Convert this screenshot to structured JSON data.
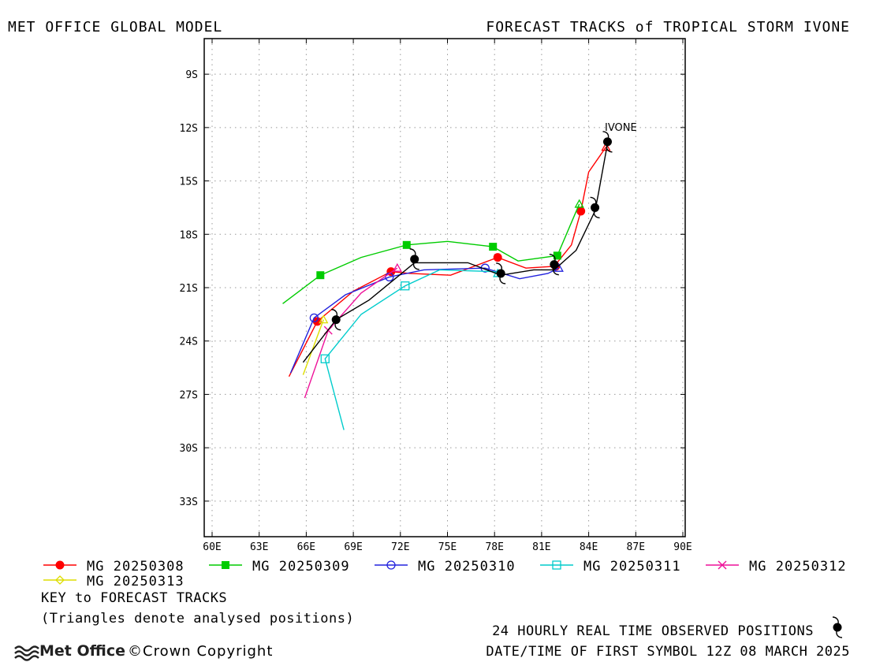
{
  "header": {
    "left_title": "MET OFFICE GLOBAL MODEL",
    "right_title": "FORECAST TRACKS of TROPICAL STORM IVONE"
  },
  "colors": {
    "observed": "#000000",
    "grid": "#999999"
  },
  "chart_data": {
    "type": "line",
    "title": "FORECAST TRACKS of TROPICAL STORM IVONE",
    "xlim": [
      60,
      90
    ],
    "ylim": [
      -35,
      -7
    ],
    "x_ticks": [
      60,
      63,
      66,
      69,
      72,
      75,
      78,
      81,
      84,
      87,
      90
    ],
    "x_tick_labels": [
      "60E",
      "63E",
      "66E",
      "69E",
      "72E",
      "75E",
      "78E",
      "81E",
      "84E",
      "87E",
      "90E"
    ],
    "y_ticks": [
      -9,
      -12,
      -15,
      -18,
      -21,
      -24,
      -27,
      -30,
      -33
    ],
    "y_tick_labels": [
      "9S",
      "12S",
      "15S",
      "18S",
      "21S",
      "24S",
      "27S",
      "30S",
      "33S"
    ],
    "grid": true,
    "storm_label": "IVONE",
    "observed": {
      "points": [
        [
          85.2,
          -12.8
        ],
        [
          84.4,
          -16.5
        ],
        [
          81.8,
          -19.7
        ],
        [
          78.4,
          -20.2
        ],
        [
          72.9,
          -19.4
        ],
        [
          67.9,
          -22.8
        ]
      ],
      "track": [
        [
          65.8,
          -25.2
        ],
        [
          67.9,
          -22.8
        ],
        [
          70.0,
          -21.7
        ],
        [
          71.8,
          -20.4
        ],
        [
          72.9,
          -19.6
        ],
        [
          76.3,
          -19.6
        ],
        [
          78.4,
          -20.3
        ],
        [
          80.5,
          -20.0
        ],
        [
          81.8,
          -20.0
        ],
        [
          83.2,
          -18.9
        ],
        [
          84.4,
          -16.7
        ],
        [
          84.6,
          -15.8
        ],
        [
          85.2,
          -12.9
        ]
      ]
    },
    "series": [
      {
        "name": "MG 20250308",
        "color": "#ff0000",
        "marker": "circle-filled",
        "points": [
          [
            64.9,
            -26.0
          ],
          [
            66.7,
            -22.9
          ],
          [
            69.0,
            -21.2
          ],
          [
            71.4,
            -20.1
          ],
          [
            72.6,
            -20.2
          ],
          [
            75.2,
            -20.3
          ],
          [
            78.2,
            -19.3
          ],
          [
            80.0,
            -19.9
          ],
          [
            81.8,
            -19.8
          ],
          [
            82.9,
            -18.6
          ],
          [
            83.5,
            -16.7
          ],
          [
            84.0,
            -14.5
          ],
          [
            85.1,
            -13.1
          ]
        ],
        "markers": [
          [
            66.7,
            -22.9
          ],
          [
            71.4,
            -20.1
          ],
          [
            78.2,
            -19.3
          ],
          [
            81.9,
            -19.8
          ],
          [
            83.5,
            -16.7
          ]
        ],
        "analysed": [
          85.1,
          -13.1
        ]
      },
      {
        "name": "MG 20250309",
        "color": "#00cc00",
        "marker": "square-filled",
        "points": [
          [
            64.5,
            -21.9
          ],
          [
            66.9,
            -20.3
          ],
          [
            69.5,
            -19.3
          ],
          [
            72.4,
            -18.6
          ],
          [
            75.0,
            -18.4
          ],
          [
            77.9,
            -18.7
          ],
          [
            79.5,
            -19.5
          ],
          [
            82.0,
            -19.2
          ],
          [
            83.4,
            -16.3
          ]
        ],
        "markers": [
          [
            66.9,
            -20.3
          ],
          [
            72.4,
            -18.6
          ],
          [
            77.9,
            -18.7
          ],
          [
            82.0,
            -19.2
          ]
        ],
        "analysed": [
          83.4,
          -16.3
        ]
      },
      {
        "name": "MG 20250310",
        "color": "#2222dd",
        "marker": "circle-open",
        "points": [
          [
            65.0,
            -25.8
          ],
          [
            66.5,
            -22.7
          ],
          [
            68.5,
            -21.4
          ],
          [
            71.3,
            -20.4
          ],
          [
            73.5,
            -20.0
          ],
          [
            77.4,
            -19.9
          ],
          [
            79.6,
            -20.5
          ],
          [
            81.4,
            -20.2
          ],
          [
            82.1,
            -19.9
          ]
        ],
        "markers": [
          [
            66.5,
            -22.7
          ],
          [
            71.3,
            -20.4
          ],
          [
            77.4,
            -19.9
          ]
        ],
        "analysed": [
          82.1,
          -19.9
        ]
      },
      {
        "name": "MG 20250311",
        "color": "#00cccc",
        "marker": "square-open",
        "points": [
          [
            68.4,
            -29.0
          ],
          [
            67.2,
            -25.0
          ],
          [
            69.5,
            -22.5
          ],
          [
            72.3,
            -20.9
          ],
          [
            74.5,
            -20.0
          ],
          [
            78.0,
            -20.1
          ],
          [
            78.2,
            -20.2
          ]
        ],
        "markers": [
          [
            67.2,
            -25.0
          ],
          [
            72.3,
            -20.9
          ]
        ],
        "analysed": [
          78.2,
          -20.2
        ]
      },
      {
        "name": "MG 20250312",
        "color": "#ee1199",
        "marker": "cross",
        "points": [
          [
            65.9,
            -27.2
          ],
          [
            67.4,
            -23.4
          ],
          [
            69.5,
            -21.3
          ],
          [
            71.8,
            -19.9
          ]
        ],
        "markers": [
          [
            67.4,
            -23.4
          ]
        ],
        "analysed": [
          71.8,
          -19.9
        ]
      },
      {
        "name": "MG 20250313",
        "color": "#dddd00",
        "marker": "diamond-open",
        "points": [
          [
            65.8,
            -25.9
          ],
          [
            67.1,
            -22.8
          ]
        ],
        "markers": [],
        "analysed": [
          67.1,
          -22.8
        ]
      }
    ]
  },
  "legend": {
    "key_title": "KEY to FORECAST TRACKS",
    "triangles_note": "(Triangles denote analysed positions)"
  },
  "footer": {
    "logo_text": "Met Office",
    "copyright": "©Crown Copyright",
    "observed_note": "24 HOURLY REAL TIME OBSERVED POSITIONS",
    "first_symbol": "DATE/TIME OF FIRST SYMBOL 12Z 08 MARCH 2025"
  }
}
